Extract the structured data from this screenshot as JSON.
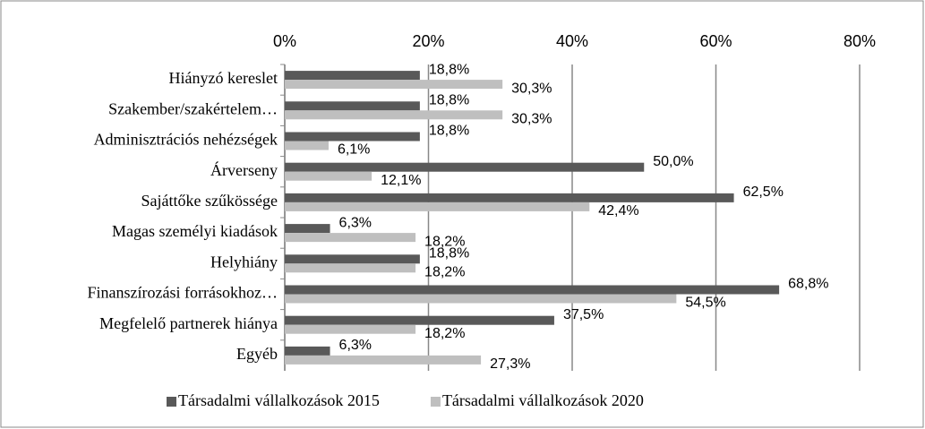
{
  "chart_data": {
    "type": "hbar",
    "categories": [
      "Hiányzó kereslet",
      "Szakember/szakértelem…",
      "Adminisztrációs nehézségek",
      "Árverseny",
      "Sajáttőke szűkössége",
      "Magas személyi kiadások",
      "Helyhiány",
      "Finanszírozási forrásokhoz…",
      "Megfelelő partnerek hiánya",
      "Egyéb"
    ],
    "series": [
      {
        "name": "Társadalmi vállalkozások 2015",
        "color": "#595959",
        "values": [
          18.8,
          18.8,
          18.8,
          50.0,
          62.5,
          6.3,
          18.8,
          68.8,
          37.5,
          6.3
        ],
        "value_labels": [
          "18,8%",
          "18,8%",
          "18,8%",
          "50,0%",
          "62,5%",
          "6,3%",
          "18,8%",
          "68,8%",
          "37,5%",
          "6,3%"
        ]
      },
      {
        "name": "Társadalmi vállalkozások 2020",
        "color": "#bfbfbf",
        "values": [
          30.3,
          30.3,
          6.1,
          12.1,
          42.4,
          18.2,
          18.2,
          54.5,
          18.2,
          27.3
        ],
        "value_labels": [
          "30,3%",
          "30,3%",
          "6,1%",
          "12,1%",
          "42,4%",
          "18,2%",
          "18,2%",
          "54,5%",
          "18,2%",
          "27,3%"
        ]
      }
    ],
    "xlim": [
      0,
      80
    ],
    "xticks": [
      {
        "value": 0,
        "label": "0%"
      },
      {
        "value": 20,
        "label": "20%"
      },
      {
        "value": 40,
        "label": "40%"
      },
      {
        "value": 60,
        "label": "60%"
      },
      {
        "value": 80,
        "label": "80%"
      }
    ],
    "grid": true,
    "legend": "bottom"
  }
}
